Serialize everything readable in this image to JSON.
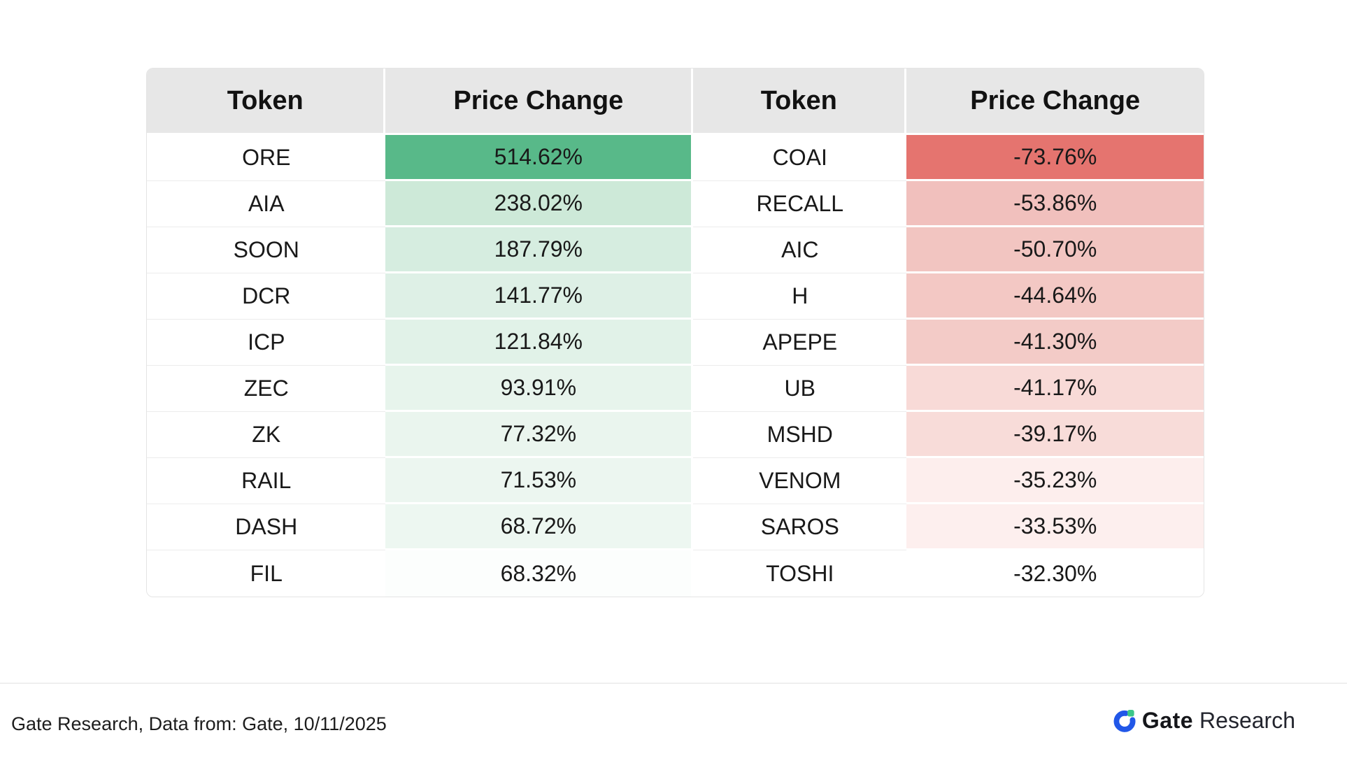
{
  "chart_data": {
    "type": "table",
    "columns": [
      "Token",
      "Price Change",
      "Token",
      "Price Change"
    ],
    "gainers": [
      {
        "token": "ORE",
        "change_pct": 514.62
      },
      {
        "token": "AIA",
        "change_pct": 238.02
      },
      {
        "token": "SOON",
        "change_pct": 187.79
      },
      {
        "token": "DCR",
        "change_pct": 141.77
      },
      {
        "token": "ICP",
        "change_pct": 121.84
      },
      {
        "token": "ZEC",
        "change_pct": 93.91
      },
      {
        "token": "ZK",
        "change_pct": 77.32
      },
      {
        "token": "RAIL",
        "change_pct": 71.53
      },
      {
        "token": "DASH",
        "change_pct": 68.72
      },
      {
        "token": "FIL",
        "change_pct": 68.32
      }
    ],
    "losers": [
      {
        "token": "COAI",
        "change_pct": -73.76
      },
      {
        "token": "RECALL",
        "change_pct": -53.86
      },
      {
        "token": "AIC",
        "change_pct": -50.7
      },
      {
        "token": "H",
        "change_pct": -44.64
      },
      {
        "token": "APEPE",
        "change_pct": -41.3
      },
      {
        "token": "UB",
        "change_pct": -41.17
      },
      {
        "token": "MSHD",
        "change_pct": -39.17
      },
      {
        "token": "VENOM",
        "change_pct": -35.23
      },
      {
        "token": "SAROS",
        "change_pct": -33.53
      },
      {
        "token": "TOSHI",
        "change_pct": -32.3
      }
    ]
  },
  "table": {
    "headers": [
      "Token",
      "Price Change",
      "Token",
      "Price Change"
    ],
    "rows": [
      {
        "gainer_token": "ORE",
        "gainer_change": "514.62%",
        "gainer_bg": "#58b989",
        "loser_token": "COAI",
        "loser_change": "-73.76%",
        "loser_bg": "#e5746f"
      },
      {
        "gainer_token": "AIA",
        "gainer_change": "238.02%",
        "gainer_bg": "#cde9d8",
        "loser_token": "RECALL",
        "loser_change": "-53.86%",
        "loser_bg": "#f1c0bd"
      },
      {
        "gainer_token": "SOON",
        "gainer_change": "187.79%",
        "gainer_bg": "#d6ede0",
        "loser_token": "AIC",
        "loser_change": "-50.70%",
        "loser_bg": "#f2c5c1"
      },
      {
        "gainer_token": "DCR",
        "gainer_change": "141.77%",
        "gainer_bg": "#def0e6",
        "loser_token": "H",
        "loser_change": "-44.64%",
        "loser_bg": "#f3c8c4"
      },
      {
        "gainer_token": "ICP",
        "gainer_change": "121.84%",
        "gainer_bg": "#e1f2e8",
        "loser_token": "APEPE",
        "loser_change": "-41.30%",
        "loser_bg": "#f3cbc7"
      },
      {
        "gainer_token": "ZEC",
        "gainer_change": "93.91%",
        "gainer_bg": "#e7f4ec",
        "loser_token": "UB",
        "loser_change": "-41.17%",
        "loser_bg": "#f8dad7"
      },
      {
        "gainer_token": "ZK",
        "gainer_change": "77.32%",
        "gainer_bg": "#eaf5ee",
        "loser_token": "MSHD",
        "loser_change": "-39.17%",
        "loser_bg": "#f8dcd9"
      },
      {
        "gainer_token": "RAIL",
        "gainer_change": "71.53%",
        "gainer_bg": "#ecf6f0",
        "loser_token": "VENOM",
        "loser_change": "-35.23%",
        "loser_bg": "#fdeeed"
      },
      {
        "gainer_token": "DASH",
        "gainer_change": "68.72%",
        "gainer_bg": "#edf7f1",
        "loser_token": "SAROS",
        "loser_change": "-33.53%",
        "loser_bg": "#fdefee"
      },
      {
        "gainer_token": "FIL",
        "gainer_change": "68.32%",
        "gainer_bg": "#fcfefd",
        "loser_token": "TOSHI",
        "loser_change": "-32.30%",
        "loser_bg": "#ffffff"
      }
    ]
  },
  "footer": {
    "source": "Gate Research, Data from: Gate, 10/11/2025",
    "logo_gate": "Gate",
    "logo_research": "Research"
  },
  "colors": {
    "header_bg": "#e7e7e7",
    "gain_strong": "#58b989",
    "loss_strong": "#e5746f",
    "brand_blue": "#2157e8",
    "brand_green": "#3bc689"
  }
}
